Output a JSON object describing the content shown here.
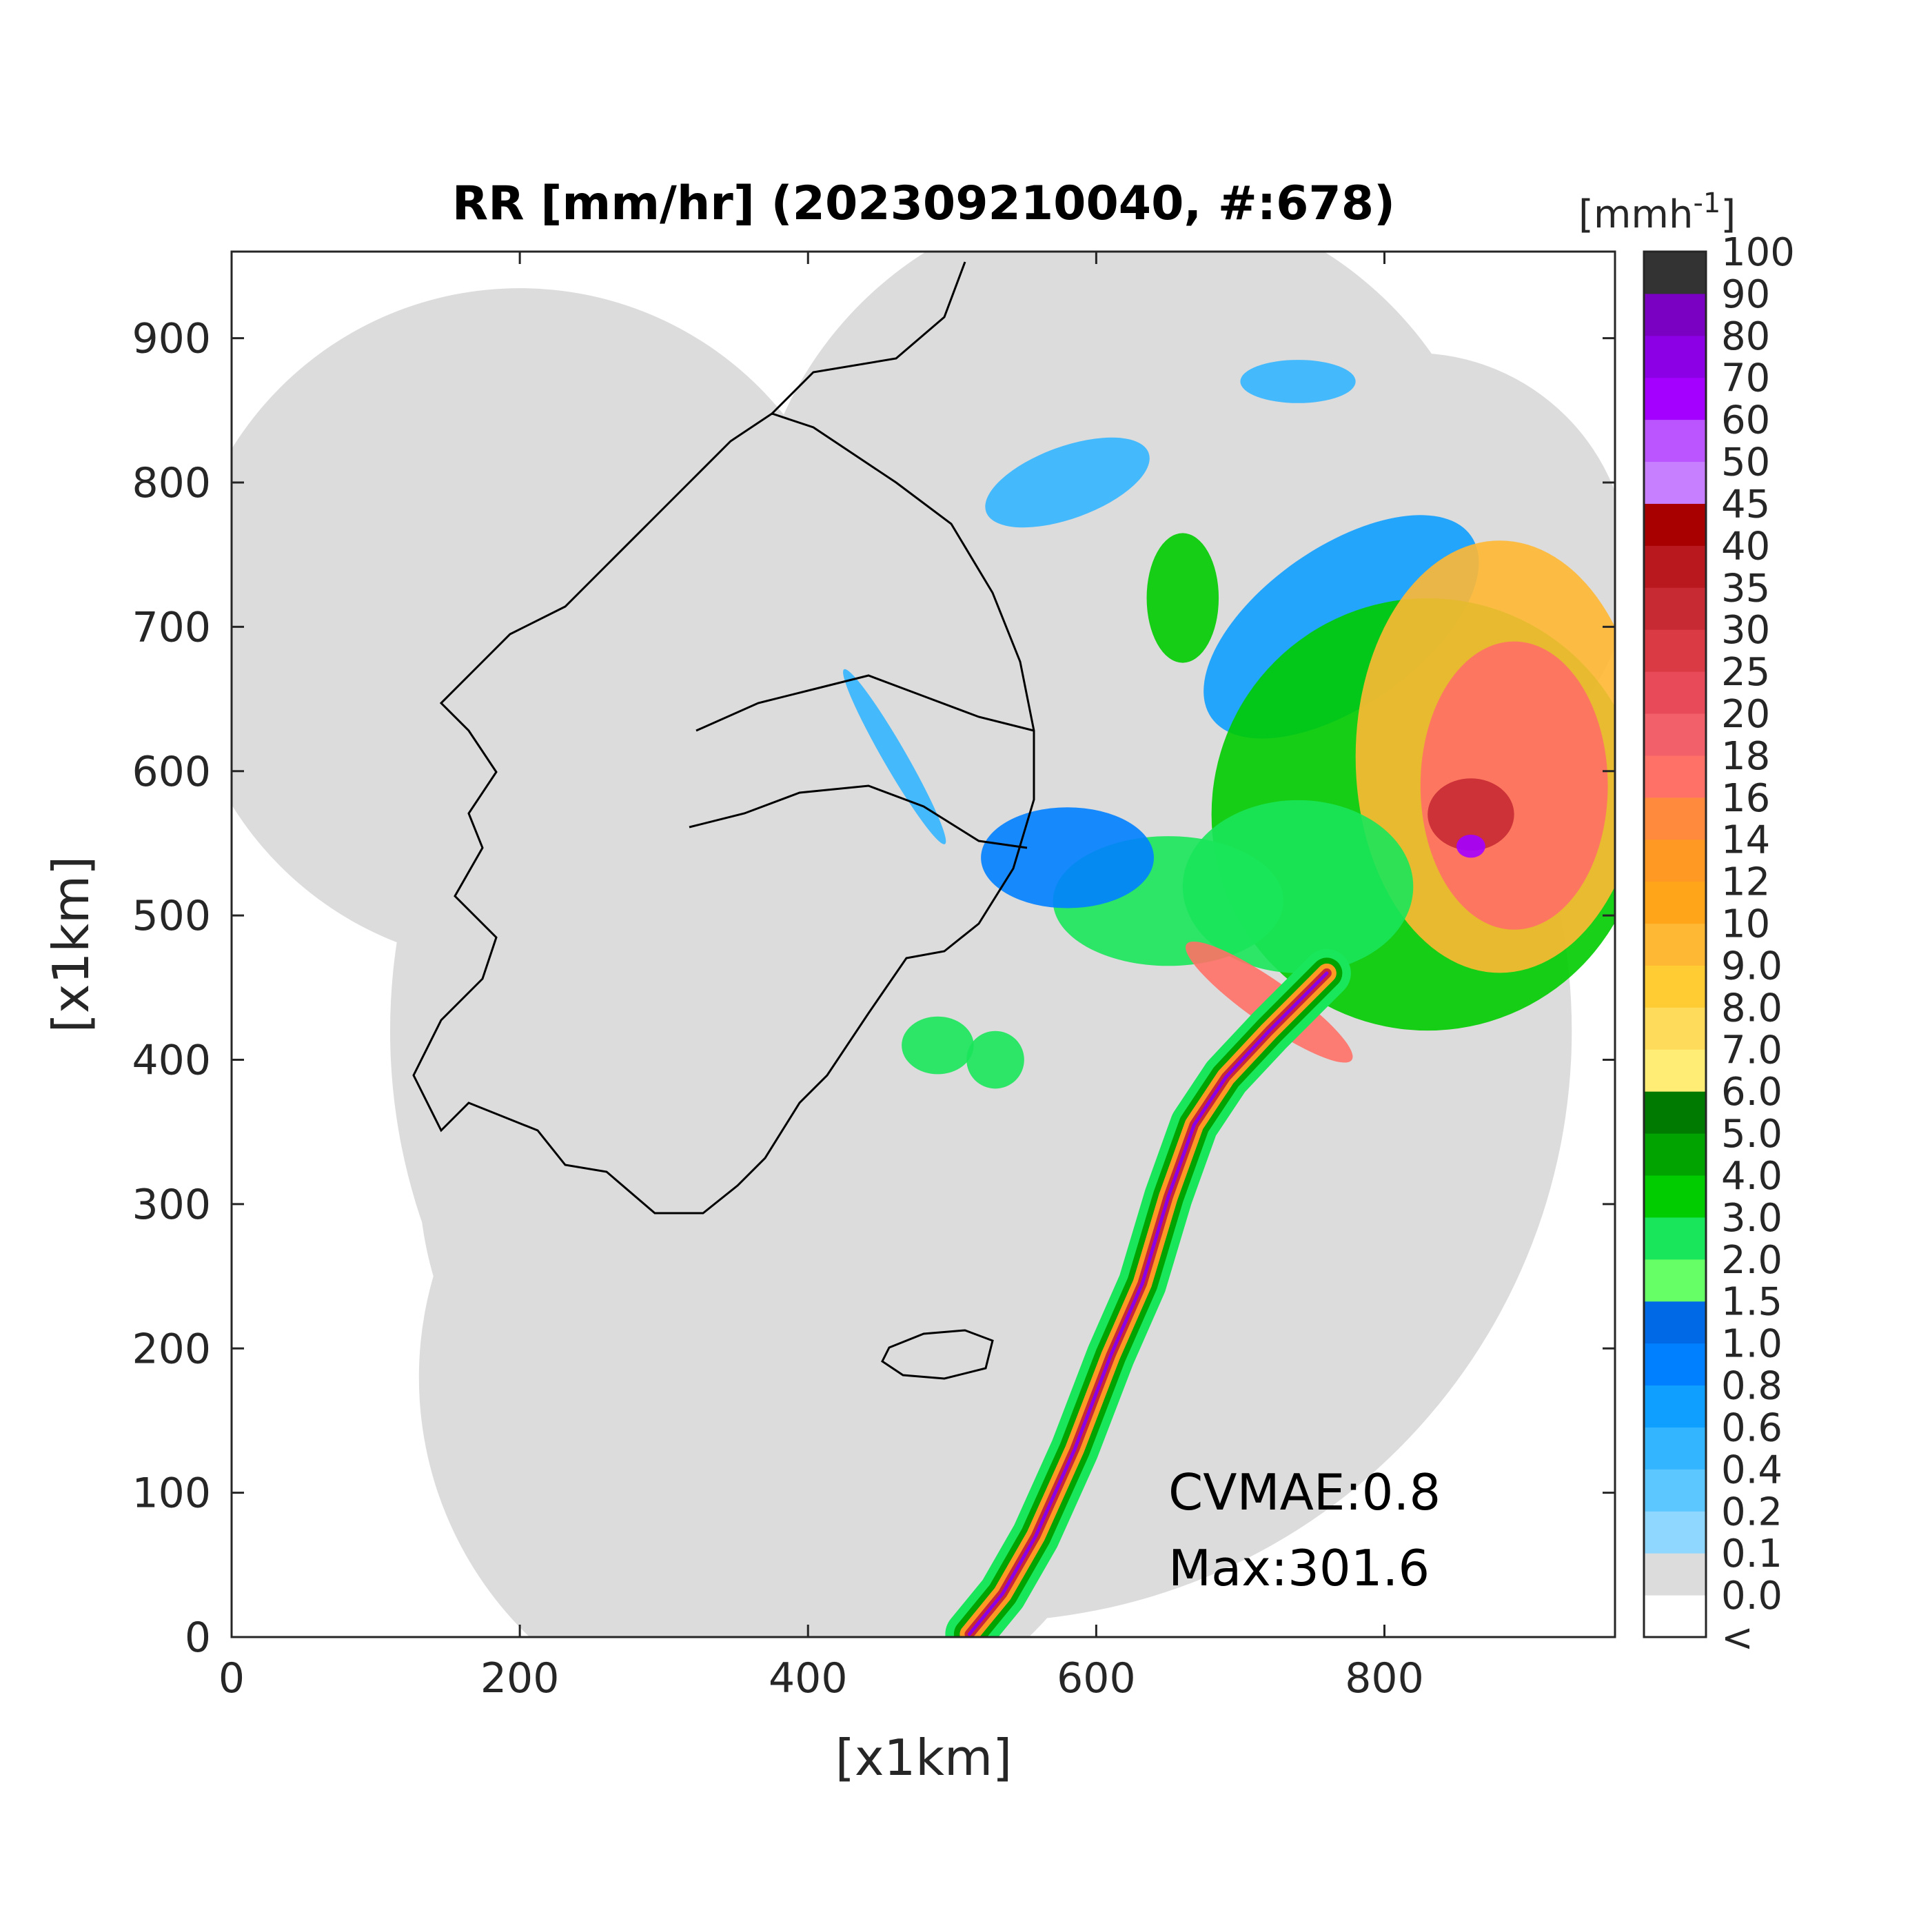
{
  "title": "RR [mm/hr] (202309210040, #:678)",
  "xlabel": "[x1km]",
  "ylabel": "[x1km]",
  "x_ticks": [
    0,
    200,
    400,
    600,
    800
  ],
  "y_ticks": [
    0,
    100,
    200,
    300,
    400,
    500,
    600,
    700,
    800,
    900
  ],
  "x_range": [
    0,
    960
  ],
  "y_range": [
    0,
    960
  ],
  "annotations": {
    "cvmae": "CVMAE:0.8",
    "max": "Max:301.6"
  },
  "colorbar": {
    "unit_prefix": "[mmh",
    "unit_exp": "-1",
    "unit_suffix": "]",
    "under_label": "<",
    "labels": [
      "0.0",
      "0.1",
      "0.2",
      "0.4",
      "0.6",
      "0.8",
      "1.0",
      "1.5",
      "2.0",
      "3.0",
      "4.0",
      "5.0",
      "6.0",
      "7.0",
      "8.0",
      "9.0",
      "10",
      "12",
      "14",
      "16",
      "18",
      "20",
      "25",
      "30",
      "35",
      "40",
      "45",
      "50",
      "60",
      "70",
      "80",
      "90",
      "100"
    ],
    "colors": [
      "#ffffff",
      "#dcdcdc",
      "#8fd7ff",
      "#5cc6ff",
      "#33b5ff",
      "#0f9fff",
      "#0080ff",
      "#006ae6",
      "#66ff66",
      "#19e65a",
      "#00cc00",
      "#00a300",
      "#007a00",
      "#ffed75",
      "#ffdb5c",
      "#ffcc33",
      "#ffb833",
      "#ffa51a",
      "#ff9924",
      "#ff8a3d",
      "#ff7066",
      "#f2606a",
      "#e84a5a",
      "#d93a44",
      "#c82a34",
      "#b8181e",
      "#a80000",
      "#c77fff",
      "#bb55ff",
      "#a300ff",
      "#8c00e6",
      "#7a00c2",
      "#333333"
    ]
  },
  "chart_data": {
    "type": "heatmap",
    "title": "RR [mm/hr] (202309210040, #:678)",
    "xlabel": "[x1km]",
    "ylabel": "[x1km]",
    "xlim": [
      0,
      960
    ],
    "ylim": [
      0,
      960
    ],
    "colorbar_label": "[mmh-1]",
    "levels": [
      0.0,
      0.1,
      0.2,
      0.4,
      0.6,
      0.8,
      1.0,
      1.5,
      2.0,
      3.0,
      4.0,
      5.0,
      6.0,
      7.0,
      8.0,
      9.0,
      10,
      12,
      14,
      16,
      18,
      20,
      25,
      30,
      35,
      40,
      45,
      50,
      60,
      70,
      80,
      90,
      100
    ],
    "grid": false,
    "coverage_circles_km": [
      {
        "cx": 200,
        "cy": 700,
        "r": 235
      },
      {
        "cx": 380,
        "cy": 320,
        "r": 250
      },
      {
        "cx": 380,
        "cy": 180,
        "r": 250
      },
      {
        "cx": 520,
        "cy": 420,
        "r": 410
      },
      {
        "cx": 620,
        "cy": 740,
        "r": 260
      },
      {
        "cx": 820,
        "cy": 740,
        "r": 150
      }
    ],
    "rain_regions": [
      {
        "cx": 770,
        "cy": 700,
        "rx": 110,
        "ry": 55,
        "rot": -35,
        "level": 0.6
      },
      {
        "cx": 830,
        "cy": 570,
        "rx": 150,
        "ry": 150,
        "rot": 0,
        "level": 3.0
      },
      {
        "cx": 880,
        "cy": 610,
        "rx": 100,
        "ry": 150,
        "rot": 0,
        "level": 9.0
      },
      {
        "cx": 890,
        "cy": 590,
        "rx": 65,
        "ry": 100,
        "rot": 0,
        "level": 16
      },
      {
        "cx": 860,
        "cy": 570,
        "rx": 30,
        "ry": 25,
        "rot": 0,
        "level": 30
      },
      {
        "cx": 860,
        "cy": 548,
        "rx": 10,
        "ry": 8,
        "rot": 0,
        "level": 60
      },
      {
        "cx": 740,
        "cy": 520,
        "rx": 80,
        "ry": 60,
        "rot": 0,
        "level": 2.0
      },
      {
        "cx": 650,
        "cy": 510,
        "rx": 80,
        "ry": 45,
        "rot": 0,
        "level": 2.0
      },
      {
        "cx": 580,
        "cy": 540,
        "rx": 60,
        "ry": 35,
        "rot": 0,
        "level": 0.8
      },
      {
        "cx": 660,
        "cy": 720,
        "rx": 25,
        "ry": 45,
        "rot": 0,
        "level": 3.0
      },
      {
        "cx": 720,
        "cy": 440,
        "rx": 70,
        "ry": 15,
        "rot": 35,
        "level": 16
      },
      {
        "cx": 460,
        "cy": 610,
        "rx": 70,
        "ry": 8,
        "rot": 60,
        "level": 0.4
      },
      {
        "cx": 490,
        "cy": 410,
        "rx": 25,
        "ry": 20,
        "rot": 0,
        "level": 2.0
      },
      {
        "cx": 530,
        "cy": 400,
        "rx": 20,
        "ry": 20,
        "rot": 0,
        "level": 2.0
      },
      {
        "cx": 580,
        "cy": 800,
        "rx": 60,
        "ry": 25,
        "rot": -20,
        "level": 0.4
      },
      {
        "cx": 740,
        "cy": 870,
        "rx": 40,
        "ry": 15,
        "rot": 0,
        "level": 0.4
      }
    ],
    "rain_band_km": [
      [
        512,
        2
      ],
      [
        535,
        30
      ],
      [
        558,
        70
      ],
      [
        585,
        130
      ],
      [
        610,
        195
      ],
      [
        632,
        245
      ],
      [
        650,
        305
      ],
      [
        668,
        355
      ],
      [
        690,
        388
      ],
      [
        720,
        420
      ],
      [
        760,
        460
      ]
    ],
    "max_value": 301.6,
    "cvmae": 0.8
  }
}
